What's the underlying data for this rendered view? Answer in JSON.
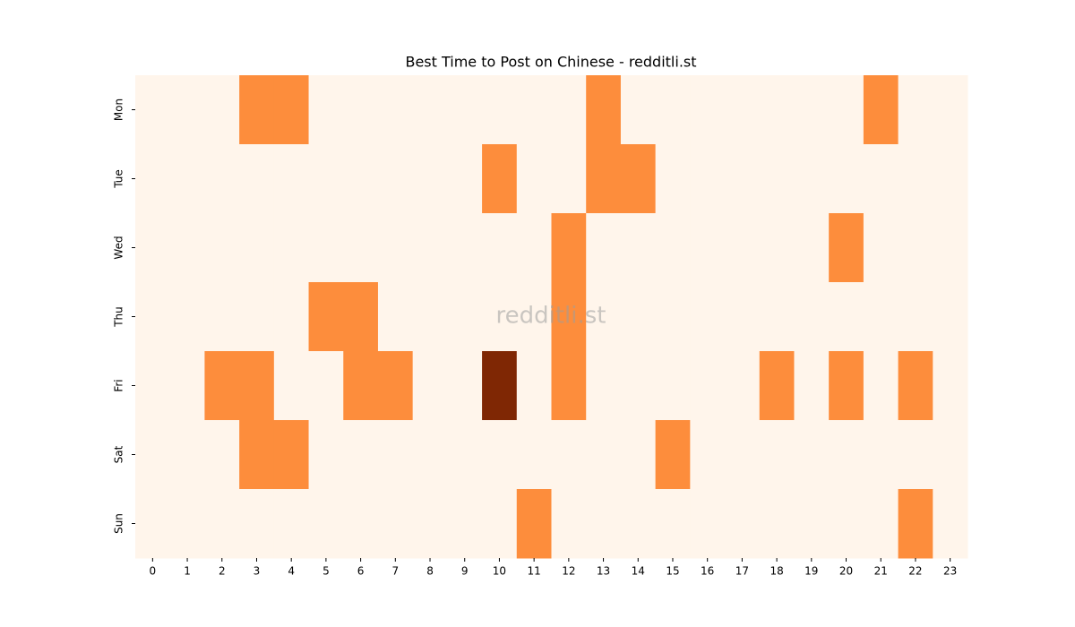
{
  "chart_data": {
    "type": "heatmap",
    "title": "Best Time to Post on Chinese - redditli.st",
    "watermark": "redditli.st",
    "columns": [
      0,
      1,
      2,
      3,
      4,
      5,
      6,
      7,
      8,
      9,
      10,
      11,
      12,
      13,
      14,
      15,
      16,
      17,
      18,
      19,
      20,
      21,
      22,
      23
    ],
    "rows": [
      "Mon",
      "Tue",
      "Wed",
      "Thu",
      "Fri",
      "Sat",
      "Sun"
    ],
    "values": [
      [
        0,
        0,
        0,
        1,
        1,
        0,
        0,
        0,
        0,
        0,
        0,
        0,
        0,
        1,
        0,
        0,
        0,
        0,
        0,
        0,
        0,
        1,
        0,
        0
      ],
      [
        0,
        0,
        0,
        0,
        0,
        0,
        0,
        0,
        0,
        0,
        1,
        0,
        0,
        1,
        1,
        0,
        0,
        0,
        0,
        0,
        0,
        0,
        0,
        0
      ],
      [
        0,
        0,
        0,
        0,
        0,
        0,
        0,
        0,
        0,
        0,
        0,
        0,
        1,
        0,
        0,
        0,
        0,
        0,
        0,
        0,
        1,
        0,
        0,
        0
      ],
      [
        0,
        0,
        0,
        0,
        0,
        1,
        1,
        0,
        0,
        0,
        0,
        0,
        1,
        0,
        0,
        0,
        0,
        0,
        0,
        0,
        0,
        0,
        0,
        0
      ],
      [
        0,
        0,
        1,
        1,
        0,
        0,
        1,
        1,
        0,
        0,
        2,
        0,
        1,
        0,
        0,
        0,
        0,
        0,
        1,
        0,
        1,
        0,
        1,
        0
      ],
      [
        0,
        0,
        0,
        1,
        1,
        0,
        0,
        0,
        0,
        0,
        0,
        0,
        0,
        0,
        0,
        1,
        0,
        0,
        0,
        0,
        0,
        0,
        0,
        0
      ],
      [
        0,
        0,
        0,
        0,
        0,
        0,
        0,
        0,
        0,
        0,
        0,
        1,
        0,
        0,
        0,
        0,
        0,
        0,
        0,
        0,
        0,
        0,
        1,
        0
      ]
    ],
    "zlim": [
      0,
      2
    ],
    "colorscale": [
      "#fff5eb",
      "#fd8d3c",
      "#7f2704"
    ]
  }
}
